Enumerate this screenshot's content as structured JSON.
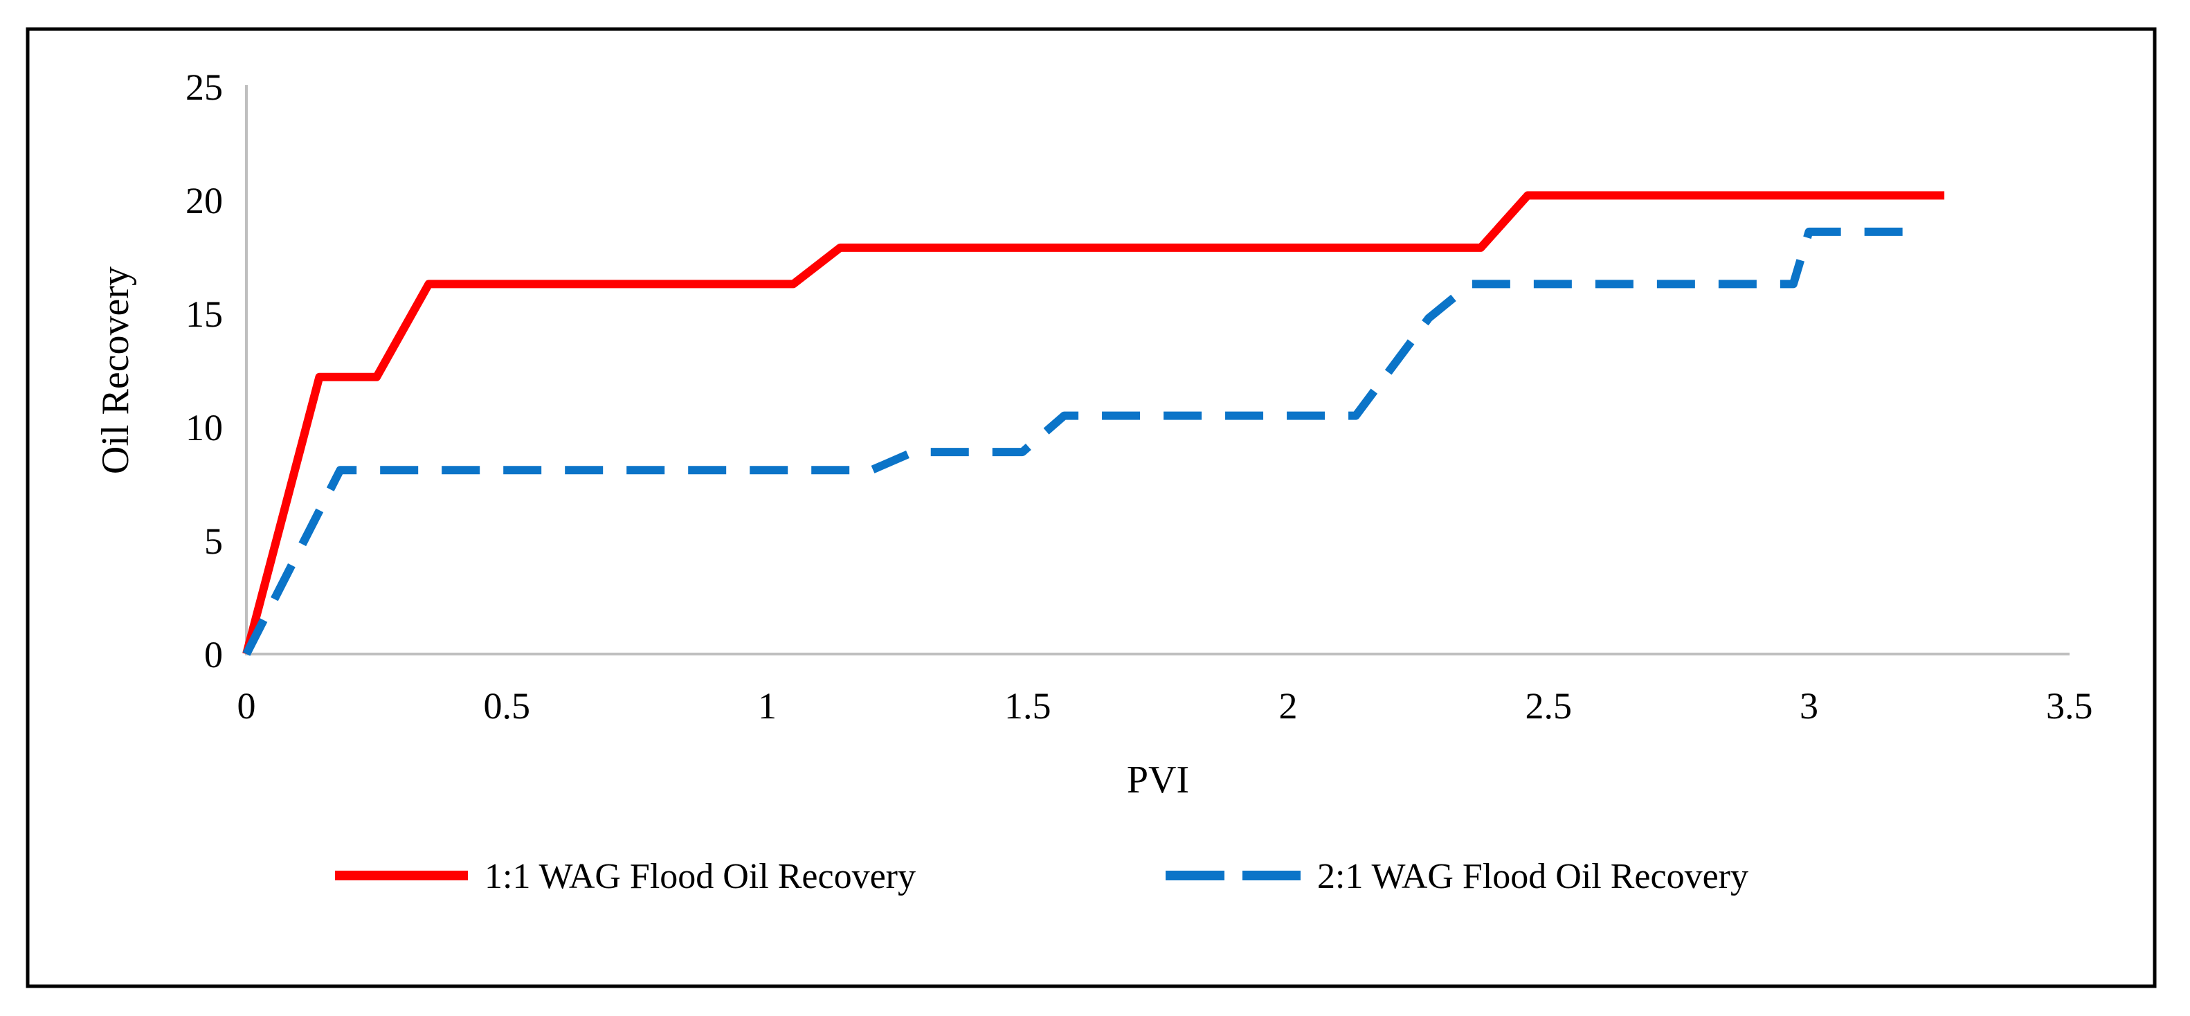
{
  "chart_data": {
    "type": "line",
    "title": "",
    "xlabel": "PVI",
    "ylabel": "Oil Recovery",
    "xlim": [
      0,
      3.5
    ],
    "ylim": [
      0,
      25
    ],
    "x_ticks": [
      0,
      0.5,
      1,
      1.5,
      2,
      2.5,
      3,
      3.5
    ],
    "x_tick_labels": [
      "0",
      "0.5",
      "1",
      "1.5",
      "2",
      "2.5",
      "3",
      "3.5"
    ],
    "y_ticks": [
      0,
      5,
      10,
      15,
      20,
      25
    ],
    "y_tick_labels": [
      "0",
      "5",
      "10",
      "15",
      "20",
      "25"
    ],
    "grid": false,
    "legend_position": "bottom-center",
    "axis_color": "#bfbfbf",
    "frame_color": "#000000",
    "text_color": "#000000",
    "series": [
      {
        "name": "1:1 WAG Flood Oil Recovery",
        "color": "#ff0000",
        "style": "solid",
        "points": [
          [
            0,
            0
          ],
          [
            0.14,
            12.2
          ],
          [
            0.25,
            12.2
          ],
          [
            0.35,
            16.3
          ],
          [
            1.05,
            16.3
          ],
          [
            1.14,
            17.9
          ],
          [
            2.37,
            17.9
          ],
          [
            2.46,
            20.2
          ],
          [
            3.26,
            20.2
          ]
        ]
      },
      {
        "name": "2:1 WAG Flood Oil Recovery",
        "color": "#0b74c8",
        "style": "dashed",
        "points": [
          [
            0,
            0
          ],
          [
            0.18,
            8.1
          ],
          [
            1.2,
            8.1
          ],
          [
            1.28,
            8.9
          ],
          [
            1.49,
            8.9
          ],
          [
            1.57,
            10.5
          ],
          [
            2.13,
            10.5
          ],
          [
            2.27,
            14.8
          ],
          [
            2.35,
            16.3
          ],
          [
            2.97,
            16.3
          ],
          [
            3.0,
            18.6
          ],
          [
            3.18,
            18.6
          ]
        ]
      }
    ]
  }
}
